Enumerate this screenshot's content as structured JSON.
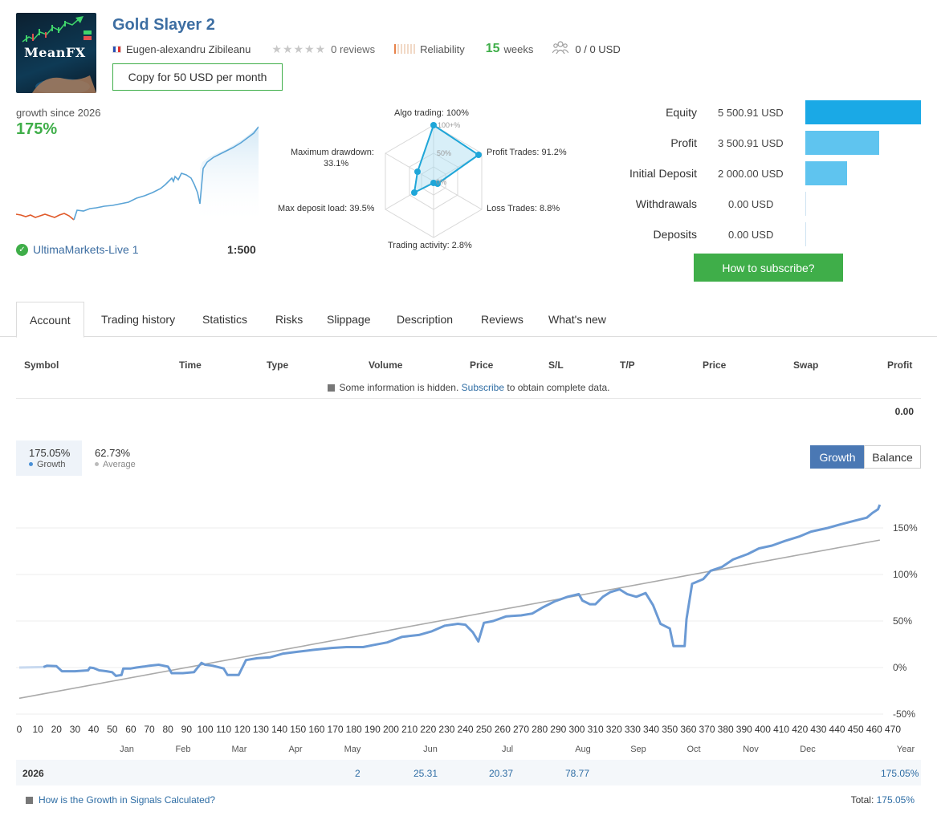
{
  "header": {
    "title": "Gold Slayer 2",
    "logo_text": "MeanFX",
    "author": "Eugen-alexandru Zibileanu",
    "reviews": "0 reviews",
    "reliability": "Reliability",
    "weeks_num": "15",
    "weeks_label": "weeks",
    "subscribers": "0 / 0 USD",
    "copy_button": "Copy for 50 USD per month",
    "colors": {
      "title": "#3d6ea2",
      "accent_green": "#3fae49"
    }
  },
  "summary": {
    "growth_since": "growth since 2026",
    "growth_value": "175%",
    "broker": "UltimaMarkets-Live 1",
    "leverage": "1:500"
  },
  "radar": {
    "algo_trading": "Algo trading: 100%",
    "profit_trades": "Profit Trades: 91.2%",
    "loss_trades": "Loss Trades: 8.8%",
    "trading_activity": "Trading activity: 2.8%",
    "max_deposit_load": "Max deposit load: 39.5%",
    "max_drawdown_label": "Maximum drawdown:",
    "max_drawdown_value": "33.1%",
    "ring_100": "100+%",
    "ring_50": "50%",
    "ring_0": "0%",
    "values": {
      "algo_trading": 100,
      "profit_trades": 91.2,
      "loss_trades": 8.8,
      "trading_activity": 2.8,
      "max_deposit_load": 39.5,
      "max_drawdown": 33.1
    }
  },
  "account_stats": [
    {
      "label": "Equity",
      "value": "5 500.91 USD",
      "amount": 5500.91,
      "color": "#1aa9e6"
    },
    {
      "label": "Profit",
      "value": "3 500.91 USD",
      "amount": 3500.91,
      "color": "#5fc4ef"
    },
    {
      "label": "Initial Deposit",
      "value": "2 000.00 USD",
      "amount": 2000.0,
      "color": "#5fc4ef"
    },
    {
      "label": "Withdrawals",
      "value": "0.00 USD",
      "amount": 0,
      "color": "#5fc4ef"
    },
    {
      "label": "Deposits",
      "value": "0.00 USD",
      "amount": 0,
      "color": "#5fc4ef"
    }
  ],
  "subscribe_button": "How to subscribe?",
  "tabs": [
    {
      "label": "Account",
      "active": true
    },
    {
      "label": "Trading history"
    },
    {
      "label": "Statistics"
    },
    {
      "label": "Risks"
    },
    {
      "label": "Slippage"
    },
    {
      "label": "Description"
    },
    {
      "label": "Reviews"
    },
    {
      "label": "What's new"
    }
  ],
  "positions_table": {
    "columns": [
      "Symbol",
      "Time",
      "Type",
      "Volume",
      "Price",
      "S/L",
      "T/P",
      "Price",
      "Swap",
      "Profit"
    ],
    "hidden_prefix": "Some information is hidden.",
    "hidden_link": "Subscribe",
    "hidden_suffix": "to obtain complete data.",
    "profit_total": "0.00"
  },
  "growth_chart": {
    "legend_growth_value": "175.05%",
    "legend_growth_label": "Growth",
    "legend_average_value": "62.73%",
    "legend_average_label": "Average",
    "btn_growth": "Growth",
    "btn_balance": "Balance",
    "colors": {
      "growth": "#6b9ad4",
      "average": "#aaaaaa",
      "growth_button": "#4a78b4"
    }
  },
  "chart_data": {
    "type": "line",
    "x_ticks": [
      "0",
      "10",
      "20",
      "30",
      "40",
      "50",
      "60",
      "70",
      "80",
      "90",
      "100",
      "110",
      "120",
      "130",
      "140",
      "150",
      "160",
      "170",
      "180",
      "190",
      "200",
      "210",
      "220",
      "230",
      "240",
      "250",
      "260",
      "270",
      "280",
      "290",
      "300",
      "310",
      "320",
      "330",
      "340",
      "350",
      "360",
      "370",
      "380",
      "390",
      "400",
      "410",
      "420",
      "430",
      "440",
      "450",
      "460",
      "470"
    ],
    "y_ticks": [
      "150%",
      "100%",
      "50%",
      "0%",
      "-50%"
    ],
    "ylim": [
      -50,
      175
    ],
    "xlim": [
      0,
      470
    ],
    "months": [
      "Jan",
      "Feb",
      "Mar",
      "Apr",
      "May",
      "Jun",
      "Jul",
      "Aug",
      "Sep",
      "Oct",
      "Nov",
      "Dec",
      "Year"
    ],
    "series": [
      {
        "name": "Growth",
        "points": [
          [
            0,
            0
          ],
          [
            13,
            0.5
          ],
          [
            15,
            2
          ],
          [
            20,
            1.5
          ],
          [
            23,
            -4
          ],
          [
            30,
            -4
          ],
          [
            37,
            -3
          ],
          [
            38,
            0
          ],
          [
            40,
            -0.5
          ],
          [
            43,
            -3
          ],
          [
            47,
            -4
          ],
          [
            50,
            -5
          ],
          [
            52,
            -9
          ],
          [
            55,
            -8
          ],
          [
            56,
            -1
          ],
          [
            60,
            -1
          ],
          [
            63,
            0
          ],
          [
            67,
            1
          ],
          [
            70,
            2
          ],
          [
            75,
            3
          ],
          [
            80,
            1
          ],
          [
            82,
            -6
          ],
          [
            88,
            -6
          ],
          [
            94,
            -5
          ],
          [
            96,
            0
          ],
          [
            98,
            5
          ],
          [
            100,
            3
          ],
          [
            104,
            2
          ],
          [
            110,
            -1
          ],
          [
            112,
            -8
          ],
          [
            118,
            -8
          ],
          [
            120,
            0
          ],
          [
            122,
            8
          ],
          [
            128,
            10
          ],
          [
            135,
            11
          ],
          [
            142,
            15
          ],
          [
            150,
            17
          ],
          [
            158,
            19
          ],
          [
            168,
            21
          ],
          [
            176,
            22
          ],
          [
            185,
            22
          ],
          [
            190,
            24
          ],
          [
            198,
            27
          ],
          [
            206,
            33
          ],
          [
            215,
            35
          ],
          [
            222,
            39
          ],
          [
            229,
            45
          ],
          [
            236,
            47
          ],
          [
            240,
            46
          ],
          [
            244,
            38
          ],
          [
            247,
            28
          ],
          [
            250,
            48
          ],
          [
            255,
            50
          ],
          [
            262,
            55
          ],
          [
            270,
            56
          ],
          [
            276,
            58
          ],
          [
            282,
            65
          ],
          [
            288,
            71
          ],
          [
            295,
            76
          ],
          [
            301,
            79
          ],
          [
            303,
            72
          ],
          [
            307,
            68
          ],
          [
            310,
            68
          ],
          [
            314,
            76
          ],
          [
            318,
            81
          ],
          [
            323,
            84
          ],
          [
            327,
            79
          ],
          [
            332,
            76
          ],
          [
            337,
            80
          ],
          [
            341,
            67
          ],
          [
            345,
            47
          ],
          [
            350,
            42
          ],
          [
            352,
            23
          ],
          [
            358,
            23
          ],
          [
            359,
            52
          ],
          [
            362,
            90
          ],
          [
            368,
            95
          ],
          [
            372,
            104
          ],
          [
            378,
            108
          ],
          [
            384,
            116
          ],
          [
            392,
            122
          ],
          [
            398,
            128
          ],
          [
            405,
            131
          ],
          [
            412,
            136
          ],
          [
            420,
            141
          ],
          [
            426,
            146
          ],
          [
            435,
            150
          ],
          [
            442,
            154
          ],
          [
            450,
            158
          ],
          [
            456,
            161
          ],
          [
            459,
            166
          ],
          [
            462,
            170
          ],
          [
            463,
            175
          ]
        ]
      },
      {
        "name": "Average",
        "points": [
          [
            0,
            -33
          ],
          [
            463,
            137
          ]
        ]
      }
    ],
    "year_row": {
      "year": "2026",
      "values": [
        {
          "month": "May",
          "value": "2"
        },
        {
          "month": "Jun",
          "value": "25.31"
        },
        {
          "month": "Jul",
          "value": "20.37"
        },
        {
          "month": "Aug",
          "value": "78.77"
        }
      ],
      "total": "175.05%"
    }
  },
  "footer": {
    "help_link": "How is the Growth in Signals Calculated?",
    "total_label": "Total:",
    "total_value": "175.05%"
  }
}
